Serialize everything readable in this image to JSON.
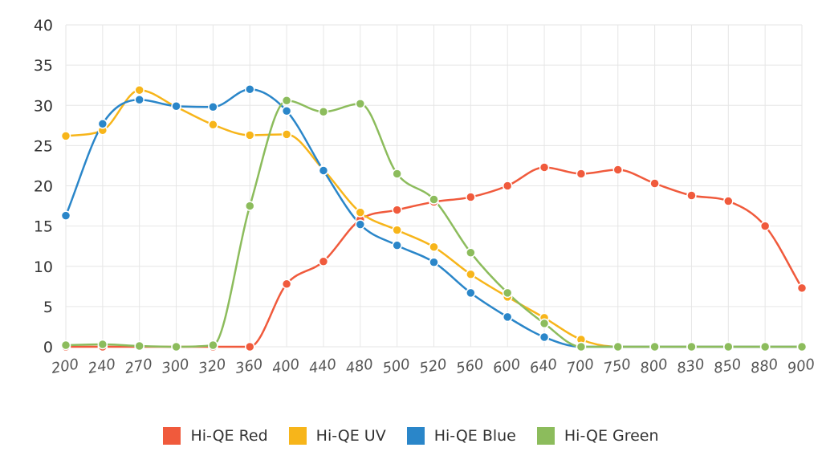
{
  "chart_data": {
    "type": "line",
    "title": "",
    "xlabel": "",
    "ylabel": "",
    "ylim": [
      0,
      40
    ],
    "yticks": [
      "0",
      "5",
      "10",
      "15",
      "20",
      "25",
      "30",
      "35",
      "40"
    ],
    "categories": [
      "200",
      "240",
      "270",
      "300",
      "320",
      "360",
      "400",
      "440",
      "480",
      "500",
      "520",
      "560",
      "600",
      "640",
      "700",
      "750",
      "800",
      "830",
      "850",
      "880",
      "900"
    ],
    "legend_position": "bottom",
    "grid": true,
    "series": [
      {
        "name": "Hi-QE Red",
        "color": "#f05a3c",
        "values": [
          0,
          0,
          0,
          0,
          0,
          0,
          7.8,
          10.6,
          15.8,
          17,
          18,
          18.6,
          20,
          22.3,
          21.5,
          22,
          20.3,
          18.8,
          18.1,
          15,
          7.3
        ]
      },
      {
        "name": "Hi-QE UV",
        "color": "#f7b51a",
        "values": [
          26.2,
          26.9,
          31.9,
          29.8,
          27.6,
          26.3,
          26.4,
          22,
          16.7,
          14.5,
          12.4,
          9,
          6.2,
          3.6,
          0.9,
          0,
          0,
          0,
          0,
          0,
          0
        ]
      },
      {
        "name": "Hi-QE Blue",
        "color": "#2a86c9",
        "values": [
          16.3,
          27.7,
          30.7,
          29.9,
          29.8,
          32,
          29.3,
          21.9,
          15.2,
          12.6,
          10.5,
          6.7,
          3.7,
          1.2,
          0,
          0,
          0,
          0,
          0,
          0,
          0
        ]
      },
      {
        "name": "Hi-QE Green",
        "color": "#8cbc5c",
        "values": [
          0.2,
          0.3,
          0.1,
          0,
          0.2,
          17.5,
          30.6,
          29.2,
          30.2,
          21.5,
          18.3,
          11.7,
          6.7,
          2.9,
          0,
          0,
          0,
          0,
          0,
          0,
          0
        ]
      }
    ]
  }
}
